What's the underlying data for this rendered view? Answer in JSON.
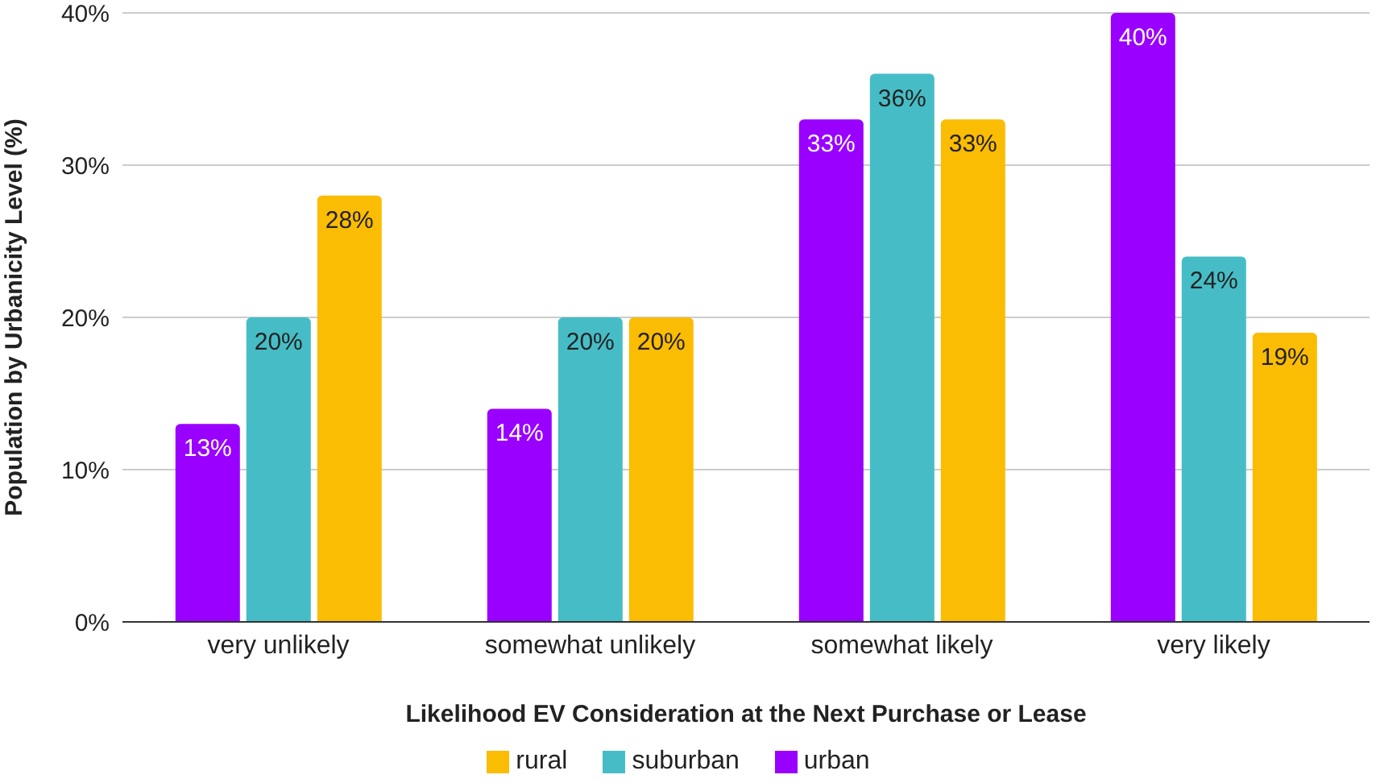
{
  "chart_data": {
    "type": "bar",
    "xlabel": "Likelihood EV Consideration at the Next Purchase or Lease",
    "ylabel": "Population by Urbanicity Level (%)",
    "categories": [
      "very unlikely",
      "somewhat unlikely",
      "somewhat likely",
      "very likely"
    ],
    "series": [
      {
        "name": "urban",
        "color": "#9900ff",
        "values": [
          13,
          14,
          33,
          40
        ],
        "value_labels": [
          "13%",
          "14%",
          "33%",
          "40%"
        ]
      },
      {
        "name": "suburban",
        "color": "#46bdc6",
        "values": [
          20,
          20,
          36,
          24
        ],
        "value_labels": [
          "20%",
          "20%",
          "36%",
          "24%"
        ]
      },
      {
        "name": "rural",
        "color": "#fbbc04",
        "values": [
          28,
          20,
          33,
          19
        ],
        "value_labels": [
          "28%",
          "20%",
          "33%",
          "19%"
        ]
      }
    ],
    "ylim": [
      0,
      40
    ],
    "yticks": [
      {
        "value": 0,
        "label": "0%"
      },
      {
        "value": 10,
        "label": "10%"
      },
      {
        "value": 20,
        "label": "20%"
      },
      {
        "value": 30,
        "label": "30%"
      },
      {
        "value": 40,
        "label": "40%"
      }
    ],
    "grid": "y",
    "legend": "bottom"
  }
}
